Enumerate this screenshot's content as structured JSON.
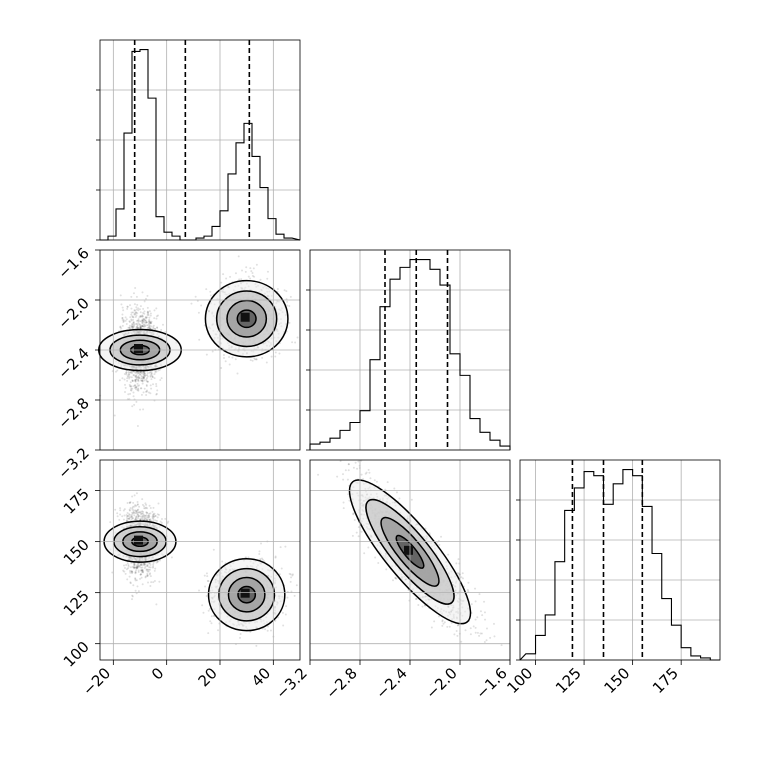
{
  "chart_data": [
    {
      "type": "histogram",
      "panel": "p1-marginal",
      "xlim": [
        -25,
        50
      ],
      "grid": true,
      "quantiles": [
        -12,
        7,
        31
      ],
      "bins_x": [
        -25,
        -22,
        -19,
        -16,
        -13,
        -10,
        -7,
        -4,
        -1,
        2,
        5,
        8,
        11,
        14,
        17,
        20,
        23,
        26,
        29,
        32,
        35,
        38,
        41,
        44,
        47
      ],
      "counts": [
        0,
        2,
        16,
        55,
        97,
        98,
        73,
        12,
        4,
        2,
        0,
        0,
        1,
        2,
        7,
        15,
        34,
        50,
        60,
        43,
        27,
        11,
        3,
        1
      ],
      "y_ticks": [
        0,
        1,
        2,
        3
      ]
    },
    {
      "type": "histogram",
      "panel": "p2-marginal",
      "xlim": [
        -3.2,
        -1.6
      ],
      "grid": true,
      "quantiles": [
        -2.6,
        -2.35,
        -2.1
      ],
      "bins_x": [
        -3.2,
        -3.12,
        -3.04,
        -2.96,
        -2.88,
        -2.8,
        -2.72,
        -2.64,
        -2.56,
        -2.48,
        -2.4,
        -2.32,
        -2.24,
        -2.16,
        -2.08,
        -2.0,
        -1.92,
        -1.84,
        -1.76,
        -1.68,
        -1.6
      ],
      "counts": [
        3,
        4,
        6,
        10,
        14,
        20,
        46,
        73,
        87,
        93,
        97,
        97,
        92,
        84,
        49,
        38,
        16,
        9,
        5,
        2
      ],
      "y_ticks": [
        0,
        1,
        2,
        3,
        4
      ]
    },
    {
      "type": "histogram",
      "panel": "p3-marginal",
      "xlim": [
        92,
        195
      ],
      "grid": true,
      "quantiles": [
        119,
        135,
        155
      ],
      "bins_x": [
        95,
        100,
        105,
        110,
        115,
        120,
        125,
        130,
        135,
        140,
        145,
        150,
        155,
        160,
        165,
        170,
        175,
        180,
        185,
        190,
        195
      ],
      "counts": [
        3,
        12,
        22,
        48,
        73,
        84,
        92,
        90,
        76,
        86,
        93,
        90,
        75,
        52,
        30,
        17,
        6,
        2,
        1,
        0
      ],
      "y_ticks": [
        0,
        1,
        2,
        3,
        4
      ]
    },
    {
      "type": "heatmap",
      "panel": "p2-vs-p1",
      "xlim": [
        -25,
        50
      ],
      "ylim": [
        -3.2,
        -1.6
      ],
      "modes": [
        {
          "x": -10,
          "y": -2.4,
          "sx": 3.5,
          "sy": 0.15,
          "weight": 1.0
        },
        {
          "x": 30,
          "y": -2.15,
          "sx": 6.5,
          "sy": 0.15,
          "weight": 0.6
        }
      ]
    },
    {
      "type": "heatmap",
      "panel": "p3-vs-p1",
      "xlim": [
        -25,
        50
      ],
      "ylim": [
        92,
        190
      ],
      "modes": [
        {
          "x": -10,
          "y": 150,
          "sx": 3.5,
          "sy": 8,
          "weight": 1.0
        },
        {
          "x": 30,
          "y": 124,
          "sx": 6.5,
          "sy": 8,
          "weight": 0.6
        }
      ]
    },
    {
      "type": "heatmap",
      "panel": "p3-vs-p2",
      "xlim": [
        -3.2,
        -1.6
      ],
      "ylim": [
        92,
        190
      ],
      "modes": [
        {
          "x": -2.4,
          "y": 145,
          "sx": 0.22,
          "sy": 16,
          "rho": -0.85,
          "weight": 1.0
        }
      ]
    }
  ],
  "axes": {
    "col1_ticks": [
      "−20",
      "0",
      "20",
      "40"
    ],
    "col1_tick_values": [
      -20,
      0,
      20,
      40
    ],
    "col2_ticks": [
      "−3.2",
      "−2.8",
      "−2.4",
      "−2.0",
      "−1.6"
    ],
    "col2_tick_values": [
      -3.2,
      -2.8,
      -2.4,
      -2.0,
      -1.6
    ],
    "col3_ticks": [
      "100",
      "125",
      "150",
      "175"
    ],
    "col3_tick_values": [
      100,
      125,
      150,
      175
    ],
    "row2_ticks": [
      "−1.6",
      "−2.0",
      "−2.4",
      "−2.8",
      "−3.2"
    ],
    "row2_tick_values": [
      -1.6,
      -2.0,
      -2.4,
      -2.8,
      -3.2
    ],
    "row3_ticks": [
      "175",
      "150",
      "125",
      "100"
    ],
    "row3_tick_values": [
      175,
      150,
      125,
      100
    ]
  }
}
